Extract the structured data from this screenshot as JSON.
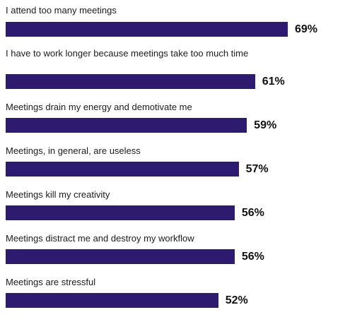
{
  "chart_data": {
    "type": "bar",
    "orientation": "horizontal",
    "categories": [
      "I attend too many meetings",
      "I have to work longer because meetings take too much time",
      "Meetings drain my energy and demotivate me",
      "Meetings, in general, are useless",
      "Meetings kill my creativity",
      "Meetings distract me and destroy my workflow",
      "Meetings are stressful"
    ],
    "values": [
      69,
      61,
      59,
      57,
      56,
      56,
      52
    ],
    "value_labels": [
      "69%",
      "61%",
      "59%",
      "57%",
      "56%",
      "56%",
      "52%"
    ],
    "xlim": [
      0,
      100
    ],
    "grid": false,
    "legend": "none",
    "bar_color": "#2e1a6e"
  }
}
